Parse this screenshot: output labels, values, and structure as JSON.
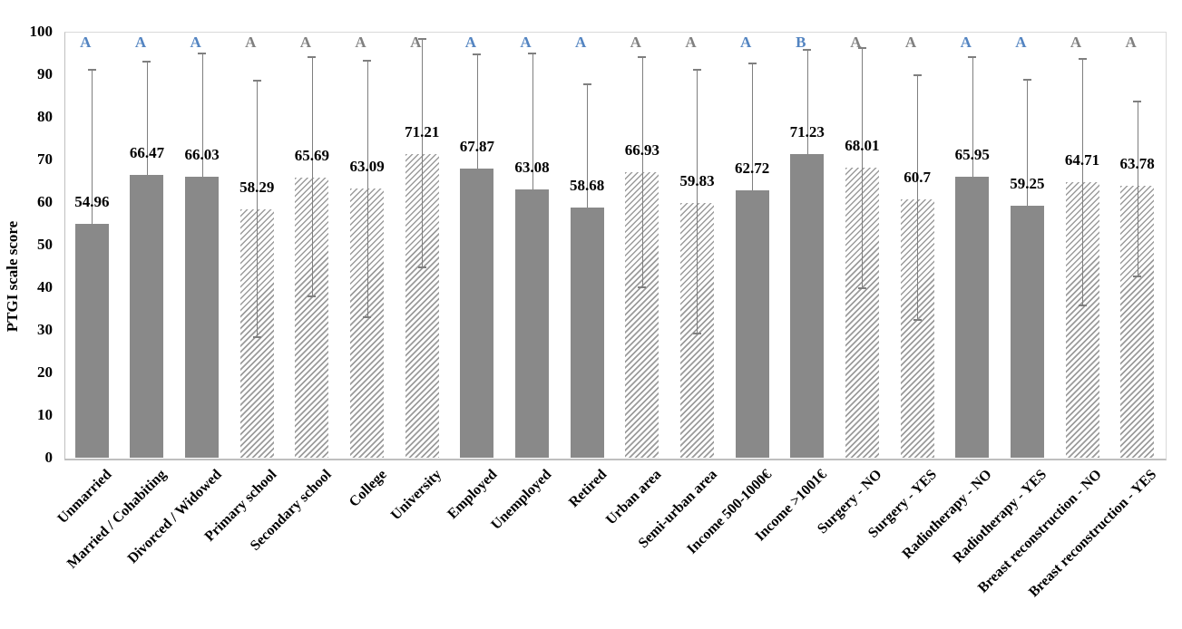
{
  "chart_data": {
    "type": "bar",
    "title": "",
    "xlabel": "",
    "ylabel": "PTGI scale score",
    "ylim": [
      0,
      100
    ],
    "ytick_labels": [
      "0",
      "10",
      "20",
      "30",
      "40",
      "50",
      "60",
      "70",
      "80",
      "90",
      "100"
    ],
    "grid": "off",
    "legend": "none",
    "categories": [
      "Unmarried",
      "Married / Cohabiting",
      "Divorced / Widowed",
      "Primary school",
      "Secondary school",
      "College",
      "University",
      "Employed",
      "Unemployed",
      "Retired",
      "Urban area",
      "Semi-urban area",
      "Income 500-1000€",
      "Income >1001€",
      "Surgery - NO",
      "Surgery - YES",
      "Radiotherapy - NO",
      "Radiotherapy - YES",
      "Breast reconstruction - NO",
      "Breast reconstruction - YES"
    ],
    "bars": [
      {
        "label": "Unmarried",
        "value": 54.96,
        "display": "54.96",
        "pattern": "solid",
        "letter": "A",
        "letter_color": "blue",
        "err_high": 91.0,
        "err_low": null
      },
      {
        "label": "Married / Cohabiting",
        "value": 66.47,
        "display": "66.47",
        "pattern": "solid",
        "letter": "A",
        "letter_color": "blue",
        "err_high": 93.0,
        "err_low": null
      },
      {
        "label": "Divorced / Widowed",
        "value": 66.03,
        "display": "66.03",
        "pattern": "solid",
        "letter": "A",
        "letter_color": "blue",
        "err_high": 94.9,
        "err_low": null
      },
      {
        "label": "Primary school",
        "value": 58.29,
        "display": "58.29",
        "pattern": "hatch",
        "letter": "A",
        "letter_color": "gray",
        "err_high": 88.5,
        "err_low": 28.3
      },
      {
        "label": "Secondary school",
        "value": 65.69,
        "display": "65.69",
        "pattern": "hatch",
        "letter": "A",
        "letter_color": "gray",
        "err_high": 94.0,
        "err_low": 37.9
      },
      {
        "label": "College",
        "value": 63.09,
        "display": "63.09",
        "pattern": "hatch",
        "letter": "A",
        "letter_color": "gray",
        "err_high": 93.2,
        "err_low": 33.0
      },
      {
        "label": "University",
        "value": 71.21,
        "display": "71.21",
        "pattern": "hatch",
        "letter": "A",
        "letter_color": "gray",
        "err_high": 98.3,
        "err_low": 44.7
      },
      {
        "label": "Employed",
        "value": 67.87,
        "display": "67.87",
        "pattern": "solid",
        "letter": "A",
        "letter_color": "blue",
        "err_high": 94.7,
        "err_low": null
      },
      {
        "label": "Unemployed",
        "value": 63.08,
        "display": "63.08",
        "pattern": "solid",
        "letter": "A",
        "letter_color": "blue",
        "err_high": 94.9,
        "err_low": null
      },
      {
        "label": "Retired",
        "value": 58.68,
        "display": "58.68",
        "pattern": "solid",
        "letter": "A",
        "letter_color": "blue",
        "err_high": 87.7,
        "err_low": null
      },
      {
        "label": "Urban area",
        "value": 66.93,
        "display": "66.93",
        "pattern": "hatch",
        "letter": "A",
        "letter_color": "gray",
        "err_high": 94.0,
        "err_low": 40.0
      },
      {
        "label": "Semi-urban area",
        "value": 59.83,
        "display": "59.83",
        "pattern": "hatch",
        "letter": "A",
        "letter_color": "gray",
        "err_high": 91.1,
        "err_low": 29.1
      },
      {
        "label": "Income 500-1000€",
        "value": 62.72,
        "display": "62.72",
        "pattern": "solid",
        "letter": "A",
        "letter_color": "blue",
        "err_high": 92.6,
        "err_low": null
      },
      {
        "label": "Income >1001€",
        "value": 71.23,
        "display": "71.23",
        "pattern": "solid",
        "letter": "B",
        "letter_color": "blue",
        "err_high": 95.7,
        "err_low": null
      },
      {
        "label": "Surgery - NO",
        "value": 68.01,
        "display": "68.01",
        "pattern": "hatch",
        "letter": "A",
        "letter_color": "gray",
        "err_high": 96.2,
        "err_low": 39.8
      },
      {
        "label": "Surgery - YES",
        "value": 60.7,
        "display": "60.7",
        "pattern": "hatch",
        "letter": "A",
        "letter_color": "gray",
        "err_high": 89.8,
        "err_low": 32.3
      },
      {
        "label": "Radiotherapy - NO",
        "value": 65.95,
        "display": "65.95",
        "pattern": "solid",
        "letter": "A",
        "letter_color": "blue",
        "err_high": 94.0,
        "err_low": null
      },
      {
        "label": "Radiotherapy - YES",
        "value": 59.25,
        "display": "59.25",
        "pattern": "solid",
        "letter": "A",
        "letter_color": "blue",
        "err_high": 88.7,
        "err_low": null
      },
      {
        "label": "Breast reconstruction - NO",
        "value": 64.71,
        "display": "64.71",
        "pattern": "hatch",
        "letter": "A",
        "letter_color": "gray",
        "err_high": 93.6,
        "err_low": 35.7
      },
      {
        "label": "Breast reconstruction - YES",
        "value": 63.78,
        "display": "63.78",
        "pattern": "hatch",
        "letter": "A",
        "letter_color": "gray",
        "err_high": 83.6,
        "err_low": 42.5
      }
    ],
    "colors": {
      "bar_solid": "#898989",
      "hatch_line": "#9b9b9b",
      "hatch_background": "#ffffff",
      "error_bar": "#7f7f7f",
      "letter_blue": "#5384c1",
      "letter_gray": "#808080",
      "axis_line": "#bfbfbf",
      "plot_border": "#d9d9d9",
      "text": "#000000"
    }
  }
}
